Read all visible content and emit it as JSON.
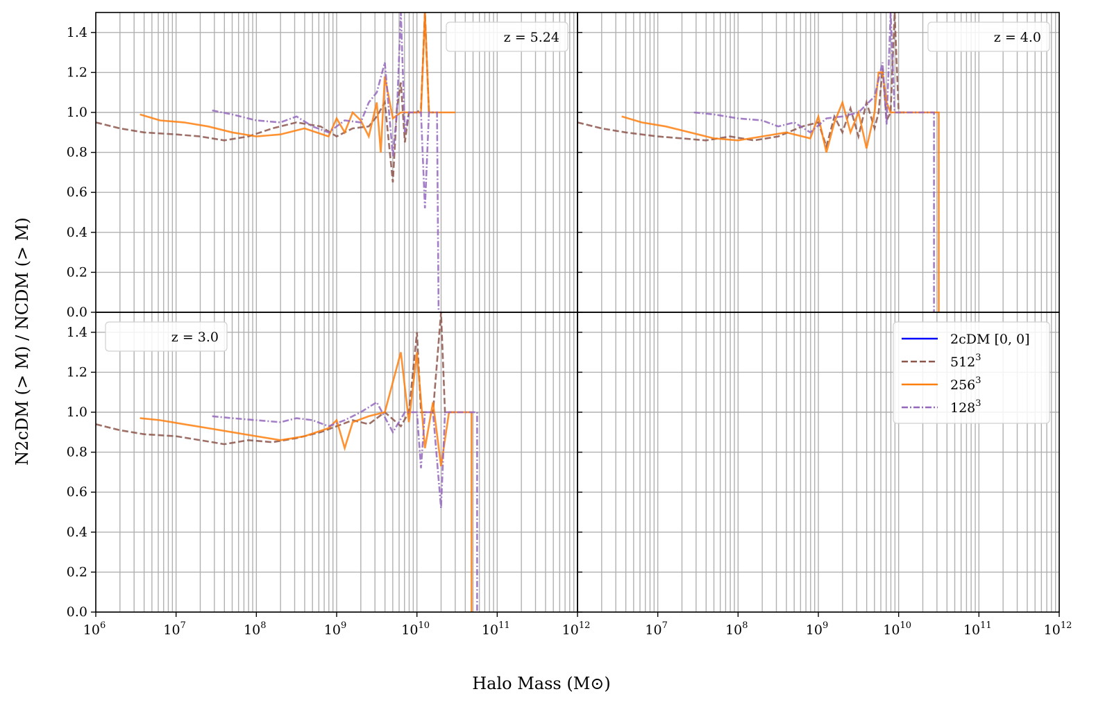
{
  "chart_data": {
    "type": "line",
    "figure": {
      "xlabel": "Halo Mass (M⊙)",
      "ylabel": "N2cDM (> M) / NCDM (> M)",
      "xscale": "log",
      "xlim": [
        1000000,
        1000000000000
      ],
      "ylim": [
        0,
        1.5
      ],
      "grid": true,
      "x_ticks": [
        "10^6",
        "10^7",
        "10^8",
        "10^9",
        "10^10",
        "10^11",
        "10^12"
      ],
      "y_ticks": [
        "0.0",
        "0.2",
        "0.4",
        "0.6",
        "0.8",
        "1.0",
        "1.2",
        "1.4"
      ]
    },
    "legend": {
      "placement": "bottom-right panel, top-right",
      "entries": [
        {
          "label": "2cDM [0, 0]",
          "base": "2cDM [0, 0]",
          "exp": "",
          "color": "#0000ff",
          "dash": "solid"
        },
        {
          "label": "512^3",
          "base": "512",
          "exp": "3",
          "color": "#8c564b",
          "dash": "dashed"
        },
        {
          "label": "256^3",
          "base": "256",
          "exp": "3",
          "color": "#ff7f0e",
          "dash": "solid"
        },
        {
          "label": "128^3",
          "base": "128",
          "exp": "3",
          "color": "#9467bd",
          "dash": "dashdot"
        }
      ]
    },
    "panels": [
      {
        "id": "top-left",
        "annotation": "z = 5.24",
        "annotation_position": "top-right",
        "series": [
          {
            "name": "512^3",
            "x_log10": [
              6.0,
              6.3,
              6.6,
              7.0,
              7.3,
              7.6,
              7.9,
              8.2,
              8.5,
              8.8,
              9.0,
              9.2,
              9.4,
              9.5,
              9.6,
              9.65,
              9.7,
              9.75,
              9.8,
              9.85,
              9.9,
              10.0,
              10.05,
              10.1,
              10.15,
              10.2
            ],
            "y": [
              0.95,
              0.92,
              0.9,
              0.89,
              0.88,
              0.86,
              0.88,
              0.92,
              0.95,
              0.93,
              0.88,
              0.92,
              0.93,
              0.98,
              1.05,
              0.85,
              0.65,
              1.02,
              1.15,
              0.85,
              1.0,
              1.0,
              1.02,
              1.5,
              1.0,
              1.0
            ]
          },
          {
            "name": "256^3",
            "x_log10": [
              6.55,
              6.8,
              7.1,
              7.4,
              7.7,
              8.0,
              8.3,
              8.6,
              8.9,
              9.0,
              9.1,
              9.2,
              9.3,
              9.4,
              9.5,
              9.55,
              9.6,
              9.7,
              9.8,
              9.9,
              10.0,
              10.05,
              10.1,
              10.15,
              10.2,
              10.3,
              10.48
            ],
            "y": [
              0.99,
              0.96,
              0.95,
              0.93,
              0.9,
              0.88,
              0.89,
              0.92,
              0.88,
              0.97,
              0.9,
              1.0,
              0.96,
              0.88,
              1.05,
              0.8,
              1.18,
              0.97,
              1.0,
              1.0,
              1.0,
              1.0,
              1.5,
              1.0,
              1.0,
              1.0,
              1.0
            ]
          },
          {
            "name": "128^3",
            "x_log10": [
              7.45,
              7.7,
              8.0,
              8.3,
              8.5,
              8.7,
              8.9,
              9.1,
              9.3,
              9.4,
              9.5,
              9.6,
              9.7,
              9.75,
              9.8,
              9.85,
              9.9,
              10.0,
              10.05,
              10.1,
              10.15,
              10.2,
              10.25,
              10.27,
              10.3
            ],
            "y": [
              1.01,
              0.99,
              0.96,
              0.95,
              0.98,
              0.93,
              0.9,
              0.96,
              0.95,
              1.05,
              1.1,
              1.25,
              0.78,
              1.0,
              1.5,
              0.9,
              1.0,
              1.0,
              1.0,
              0.52,
              1.0,
              1.0,
              1.0,
              0.0,
              0.0
            ]
          }
        ]
      },
      {
        "id": "top-right",
        "annotation": "z = 4.0",
        "annotation_position": "top-right",
        "series": [
          {
            "name": "512^3",
            "x_log10": [
              6.0,
              6.3,
              6.6,
              7.0,
              7.3,
              7.6,
              7.9,
              8.2,
              8.5,
              8.8,
              9.0,
              9.1,
              9.2,
              9.3,
              9.4,
              9.5,
              9.6,
              9.7,
              9.75,
              9.8,
              9.85,
              9.9,
              9.95,
              10.0,
              10.05,
              10.1
            ],
            "y": [
              0.95,
              0.92,
              0.9,
              0.88,
              0.87,
              0.86,
              0.88,
              0.86,
              0.88,
              0.93,
              0.95,
              0.83,
              0.98,
              0.9,
              1.02,
              0.88,
              1.05,
              0.92,
              1.0,
              1.22,
              0.96,
              1.0,
              1.5,
              1.0,
              1.0,
              1.0
            ]
          },
          {
            "name": "256^3",
            "x_log10": [
              6.55,
              6.8,
              7.1,
              7.4,
              7.7,
              8.0,
              8.3,
              8.6,
              8.9,
              9.0,
              9.1,
              9.2,
              9.3,
              9.4,
              9.5,
              9.6,
              9.7,
              9.75,
              9.8,
              9.85,
              9.9,
              9.95,
              10.0,
              10.1,
              10.2,
              10.3,
              10.4,
              10.5,
              10.5
            ],
            "y": [
              0.98,
              0.95,
              0.93,
              0.9,
              0.87,
              0.86,
              0.88,
              0.9,
              0.87,
              0.98,
              0.8,
              0.95,
              1.05,
              0.9,
              1.0,
              0.82,
              1.0,
              1.2,
              1.2,
              1.05,
              1.0,
              1.0,
              1.0,
              1.0,
              1.0,
              1.0,
              1.0,
              1.0,
              0.0
            ]
          },
          {
            "name": "128^3",
            "x_log10": [
              7.45,
              7.7,
              8.0,
              8.3,
              8.5,
              8.7,
              8.9,
              9.1,
              9.3,
              9.5,
              9.7,
              9.8,
              9.85,
              9.9,
              9.95,
              10.0,
              10.05,
              10.1,
              10.2,
              10.3,
              10.4,
              10.44,
              10.44
            ],
            "y": [
              1.0,
              0.99,
              0.97,
              0.96,
              0.93,
              0.95,
              0.9,
              0.97,
              0.98,
              1.0,
              1.08,
              1.25,
              0.94,
              1.5,
              1.0,
              1.0,
              1.0,
              1.0,
              1.0,
              1.0,
              1.0,
              1.0,
              0.0
            ]
          }
        ]
      },
      {
        "id": "bottom-left",
        "annotation": "z = 3.0",
        "annotation_position": "top-left",
        "series": [
          {
            "name": "512^3",
            "x_log10": [
              6.0,
              6.3,
              6.6,
              7.0,
              7.3,
              7.6,
              7.9,
              8.2,
              8.5,
              8.8,
              9.0,
              9.2,
              9.4,
              9.6,
              9.8,
              9.9,
              10.0,
              10.05,
              10.1,
              10.2,
              10.3,
              10.35,
              10.4,
              10.45,
              10.5
            ],
            "y": [
              0.94,
              0.91,
              0.89,
              0.88,
              0.86,
              0.84,
              0.86,
              0.85,
              0.87,
              0.9,
              0.93,
              0.96,
              0.94,
              1.0,
              0.93,
              1.0,
              1.4,
              1.0,
              1.0,
              1.0,
              1.5,
              1.0,
              1.0,
              1.0,
              1.0
            ]
          },
          {
            "name": "256^3",
            "x_log10": [
              6.55,
              6.8,
              7.1,
              7.4,
              7.7,
              8.0,
              8.3,
              8.6,
              8.9,
              9.0,
              9.1,
              9.2,
              9.4,
              9.6,
              9.8,
              9.9,
              10.0,
              10.1,
              10.2,
              10.3,
              10.4,
              10.5,
              10.68,
              10.68
            ],
            "y": [
              0.97,
              0.96,
              0.94,
              0.92,
              0.9,
              0.88,
              0.86,
              0.88,
              0.92,
              0.96,
              0.82,
              0.95,
              0.98,
              1.0,
              1.3,
              0.95,
              1.3,
              0.82,
              1.05,
              0.73,
              1.0,
              1.0,
              1.0,
              0.0
            ]
          },
          {
            "name": "128^3",
            "x_log10": [
              7.45,
              7.7,
              8.0,
              8.3,
              8.5,
              8.7,
              8.9,
              9.1,
              9.3,
              9.5,
              9.7,
              9.85,
              10.0,
              10.05,
              10.1,
              10.2,
              10.3,
              10.35,
              10.4,
              10.5,
              10.6,
              10.7,
              10.75,
              10.75
            ],
            "y": [
              0.98,
              0.97,
              0.96,
              0.95,
              0.97,
              0.96,
              0.93,
              0.96,
              1.0,
              1.05,
              0.9,
              1.0,
              1.0,
              0.72,
              1.0,
              1.0,
              0.52,
              1.0,
              1.0,
              1.0,
              1.0,
              1.0,
              1.0,
              0.0
            ]
          }
        ]
      },
      {
        "id": "bottom-right",
        "annotation": "",
        "series": []
      }
    ]
  }
}
